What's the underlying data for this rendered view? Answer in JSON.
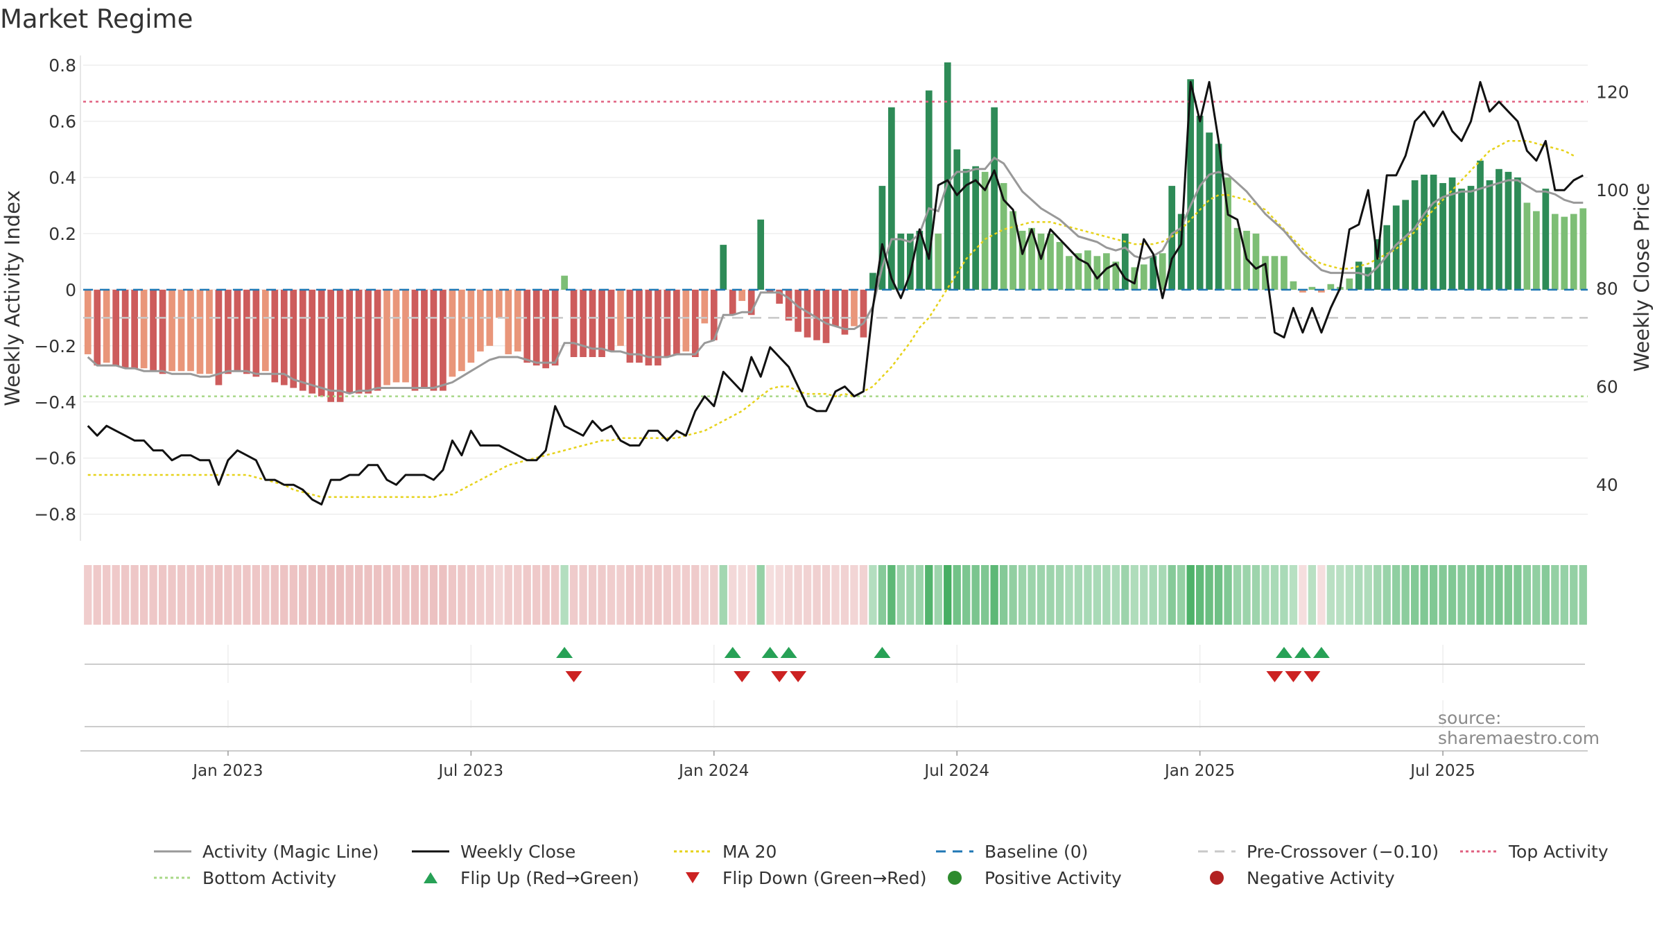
{
  "title": "Market Regime",
  "source": "source: sharemaestro.com",
  "colors": {
    "background": "#ffffff",
    "grid": "#e6e6e6",
    "pos_dark": "#2e8b57",
    "pos_light": "#7dbe75",
    "neg_dark": "#cd5c5c",
    "neg_light": "#e9967a",
    "magic_line": "#999999",
    "close_line": "#111111",
    "ma20": "#e6d21a",
    "baseline": "#1f77b4",
    "pre_crossover": "#c8c8c8",
    "top_activity": "#e06080",
    "bottom_activity": "#a8d888",
    "flip_up": "#27a156",
    "flip_down": "#cc2222",
    "positive_dot": "#2e8b2e",
    "negative_dot": "#b22222"
  },
  "chart_data": {
    "type": "bar",
    "title": "Market Regime",
    "xlabel": "",
    "ylabel": "Weekly Activity Index",
    "y2label": "Weekly Close Price",
    "ylim": [
      -0.87,
      0.81
    ],
    "y2lim": [
      30,
      126
    ],
    "yticks": [
      "−0.8",
      "−0.6",
      "−0.4",
      "−0.2",
      "0",
      "0.2",
      "0.4",
      "0.6",
      "0.8"
    ],
    "y2ticks": [
      "40",
      "60",
      "80",
      "100",
      "120"
    ],
    "x_tick_labels": [
      "Jan 2023",
      "Jul 2023",
      "Jan 2024",
      "Jul 2024",
      "Jan 2025",
      "Jul 2025"
    ],
    "x_tick_weeks": [
      15,
      41,
      67,
      93,
      119,
      145
    ],
    "reference_lines": {
      "top_activity": 0.67,
      "bottom_activity": -0.38,
      "pre_crossover": -0.1,
      "baseline": 0
    },
    "activity": [
      -0.23,
      -0.27,
      -0.26,
      -0.27,
      -0.28,
      -0.28,
      -0.28,
      -0.29,
      -0.3,
      -0.29,
      -0.29,
      -0.29,
      -0.3,
      -0.3,
      -0.34,
      -0.3,
      -0.29,
      -0.3,
      -0.31,
      -0.29,
      -0.33,
      -0.34,
      -0.35,
      -0.36,
      -0.37,
      -0.38,
      -0.4,
      -0.4,
      -0.37,
      -0.37,
      -0.37,
      -0.36,
      -0.34,
      -0.33,
      -0.33,
      -0.36,
      -0.35,
      -0.36,
      -0.36,
      -0.31,
      -0.29,
      -0.26,
      -0.22,
      -0.2,
      -0.1,
      -0.23,
      -0.22,
      -0.26,
      -0.27,
      -0.28,
      -0.27,
      0.05,
      -0.24,
      -0.24,
      -0.24,
      -0.24,
      -0.22,
      -0.2,
      -0.26,
      -0.26,
      -0.27,
      -0.27,
      -0.24,
      -0.23,
      -0.22,
      -0.24,
      -0.12,
      -0.18,
      0.16,
      -0.09,
      -0.04,
      -0.09,
      0.25,
      -0.01,
      -0.05,
      -0.11,
      -0.15,
      -0.17,
      -0.18,
      -0.19,
      -0.13,
      -0.16,
      -0.13,
      -0.17,
      0.06,
      0.37,
      0.65,
      0.2,
      0.2,
      0.21,
      0.71,
      0.2,
      0.81,
      0.5,
      0.43,
      0.44,
      0.42,
      0.65,
      0.38,
      0.28,
      0.21,
      0.22,
      0.2,
      0.2,
      0.17,
      0.12,
      0.13,
      0.14,
      0.12,
      0.13,
      0.1,
      0.2,
      0.08,
      0.09,
      0.12,
      0.13,
      0.37,
      0.27,
      0.75,
      0.62,
      0.56,
      0.52,
      0.4,
      0.22,
      0.21,
      0.2,
      0.12,
      0.12,
      0.12,
      0.03,
      -0.01,
      0.01,
      -0.01,
      0.02,
      0.01,
      0.04,
      0.1,
      0.08,
      0.18,
      0.23,
      0.3,
      0.32,
      0.39,
      0.41,
      0.41,
      0.38,
      0.4,
      0.36,
      0.37,
      0.46,
      0.39,
      0.43,
      0.42,
      0.4,
      0.31,
      0.28,
      0.36,
      0.27,
      0.26,
      0.27,
      0.29
    ],
    "magic_line": [
      -0.24,
      -0.27,
      -0.27,
      -0.27,
      -0.28,
      -0.28,
      -0.29,
      -0.29,
      -0.29,
      -0.3,
      -0.3,
      -0.3,
      -0.31,
      -0.31,
      -0.3,
      -0.29,
      -0.29,
      -0.29,
      -0.3,
      -0.3,
      -0.3,
      -0.3,
      -0.32,
      -0.33,
      -0.34,
      -0.35,
      -0.36,
      -0.36,
      -0.37,
      -0.36,
      -0.36,
      -0.35,
      -0.35,
      -0.35,
      -0.35,
      -0.35,
      -0.35,
      -0.35,
      -0.34,
      -0.33,
      -0.31,
      -0.29,
      -0.27,
      -0.25,
      -0.24,
      -0.24,
      -0.24,
      -0.25,
      -0.26,
      -0.26,
      -0.26,
      -0.19,
      -0.19,
      -0.2,
      -0.21,
      -0.21,
      -0.22,
      -0.22,
      -0.23,
      -0.23,
      -0.24,
      -0.24,
      -0.24,
      -0.23,
      -0.23,
      -0.23,
      -0.19,
      -0.18,
      -0.09,
      -0.09,
      -0.08,
      -0.08,
      -0.01,
      -0.01,
      -0.01,
      -0.03,
      -0.06,
      -0.08,
      -0.1,
      -0.12,
      -0.13,
      -0.14,
      -0.14,
      -0.12,
      -0.06,
      0.08,
      0.18,
      0.18,
      0.17,
      0.2,
      0.29,
      0.28,
      0.38,
      0.42,
      0.42,
      0.43,
      0.43,
      0.47,
      0.45,
      0.4,
      0.35,
      0.32,
      0.29,
      0.27,
      0.25,
      0.22,
      0.19,
      0.18,
      0.17,
      0.15,
      0.14,
      0.15,
      0.12,
      0.11,
      0.12,
      0.14,
      0.2,
      0.22,
      0.3,
      0.37,
      0.41,
      0.42,
      0.41,
      0.38,
      0.35,
      0.31,
      0.27,
      0.24,
      0.21,
      0.17,
      0.13,
      0.1,
      0.07,
      0.06,
      0.06,
      0.06,
      0.06,
      0.05,
      0.08,
      0.12,
      0.16,
      0.19,
      0.22,
      0.27,
      0.31,
      0.33,
      0.34,
      0.35,
      0.35,
      0.36,
      0.37,
      0.38,
      0.39,
      0.39,
      0.37,
      0.35,
      0.35,
      0.34,
      0.32,
      0.31,
      0.31
    ],
    "close": [
      52,
      50,
      52,
      51,
      50,
      49,
      49,
      47,
      47,
      45,
      46,
      46,
      45,
      45,
      40,
      45,
      47,
      46,
      45,
      41,
      41,
      40,
      40,
      39,
      37,
      36,
      41,
      41,
      42,
      42,
      44,
      44,
      41,
      40,
      42,
      42,
      42,
      41,
      43,
      49,
      46,
      51,
      48,
      48,
      48,
      47,
      46,
      45,
      45,
      47,
      56,
      52,
      51,
      50,
      53,
      51,
      52,
      49,
      48,
      48,
      51,
      51,
      49,
      51,
      50,
      55,
      58,
      56,
      63,
      61,
      59,
      66,
      62,
      68,
      66,
      64,
      60,
      56,
      55,
      55,
      59,
      60,
      58,
      59,
      76,
      89,
      82,
      78,
      83,
      92,
      86,
      101,
      102,
      99,
      101,
      102,
      100,
      104,
      98,
      96,
      87,
      92,
      86,
      92,
      90,
      88,
      86,
      85,
      82,
      84,
      85,
      82,
      81,
      90,
      87,
      78,
      86,
      89,
      122,
      114,
      122,
      110,
      95,
      94,
      86,
      84,
      85,
      71,
      70,
      76,
      71,
      76,
      71,
      76,
      80,
      92,
      93,
      100,
      86,
      103,
      103,
      107,
      114,
      116,
      113,
      116,
      112,
      110,
      114,
      122,
      116,
      118,
      116,
      114,
      108,
      106,
      110,
      100,
      100,
      102,
      103
    ],
    "ma20": [
      42,
      42,
      42,
      42,
      42,
      42,
      42,
      42,
      42,
      42,
      42,
      42,
      42,
      42,
      42,
      42,
      42,
      42,
      41.5,
      41,
      40.5,
      40,
      39,
      38.5,
      38,
      37.5,
      37.5,
      37.5,
      37.5,
      37.5,
      37.5,
      37.5,
      37.5,
      37.5,
      37.5,
      37.5,
      37.5,
      37.5,
      38,
      38,
      39,
      40,
      41,
      42,
      43,
      44,
      44.5,
      45,
      45.5,
      46,
      46.5,
      47,
      47.5,
      48,
      48.5,
      49,
      49,
      49.5,
      49.5,
      49.5,
      49.5,
      49.5,
      49.5,
      49.5,
      50,
      50.5,
      51,
      52,
      53,
      54,
      55,
      56.5,
      58,
      59.5,
      60,
      60,
      59,
      58.5,
      58.5,
      58.5,
      58,
      58.5,
      58,
      59,
      60,
      62,
      64,
      66.5,
      69,
      72,
      74,
      77,
      80,
      83,
      86,
      88,
      90,
      91,
      92,
      92.5,
      93,
      93.5,
      93.5,
      93.5,
      93,
      92.5,
      92,
      91.5,
      91,
      90.5,
      90,
      89.5,
      89,
      89,
      89,
      89.5,
      90.5,
      92,
      94,
      96,
      98,
      99,
      99,
      98.5,
      98,
      97,
      96,
      94,
      92,
      90,
      88,
      86,
      85,
      84.5,
      84,
      84,
      84.5,
      85,
      86,
      87,
      88,
      90,
      91.5,
      94,
      96,
      98,
      100,
      102,
      104,
      106,
      108,
      109,
      110,
      110,
      110,
      109.5,
      109,
      108.5,
      108,
      107
    ],
    "series": [
      {
        "name": "Activity (Magic Line)"
      },
      {
        "name": "Weekly Close"
      },
      {
        "name": "MA 20"
      },
      {
        "name": "Baseline (0)"
      },
      {
        "name": "Pre-Crossover (−0.10)"
      },
      {
        "name": "Top Activity"
      },
      {
        "name": "Bottom Activity"
      },
      {
        "name": "Flip Up (Red→Green)"
      },
      {
        "name": "Flip Down (Green→Red)"
      },
      {
        "name": "Positive Activity"
      },
      {
        "name": "Negative Activity"
      }
    ],
    "flip_up_weeks": [
      51,
      69,
      73,
      75,
      85,
      128,
      130,
      132
    ],
    "flip_down_weeks": [
      52,
      70,
      74,
      76,
      127,
      129,
      131
    ],
    "legend_placement": "bottom"
  },
  "legend": [
    {
      "label": "Activity (Magic Line)",
      "kind": "line-solid-gray"
    },
    {
      "label": "Weekly Close",
      "kind": "line-solid-black"
    },
    {
      "label": "MA 20",
      "kind": "line-dotted-yellow"
    },
    {
      "label": "Baseline (0)",
      "kind": "line-dashed-blue"
    },
    {
      "label": "Pre-Crossover (−0.10)",
      "kind": "line-dashed-gray"
    },
    {
      "label": "Top Activity",
      "kind": "line-dotted-red"
    },
    {
      "label": "Bottom Activity",
      "kind": "line-dotted-green"
    },
    {
      "label": "Flip Up (Red→Green)",
      "kind": "triangle-up"
    },
    {
      "label": "Flip Down (Green→Red)",
      "kind": "triangle-down"
    },
    {
      "label": "Positive Activity",
      "kind": "dot-green"
    },
    {
      "label": "Negative Activity",
      "kind": "dot-red"
    }
  ]
}
